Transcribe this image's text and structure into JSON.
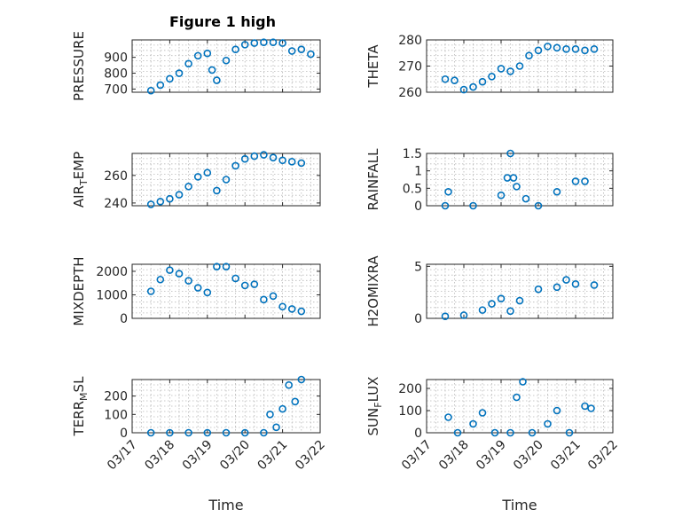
{
  "title": "Figure 1 high",
  "colors": {
    "marker": "#0072bd",
    "axis": "#262626"
  },
  "x_tick_labels": [
    "03/17",
    "03/18",
    "03/19",
    "03/20",
    "03/21",
    "03/22"
  ],
  "x_axis_label": "Time",
  "chart_data": [
    {
      "type": "scatter",
      "name": "pressure",
      "ylabel": "PRESSURE",
      "title": "Figure 1 high",
      "yticks": [
        700,
        800,
        900
      ],
      "ylim": [
        680,
        1010
      ],
      "grid": true,
      "x": [
        "03/17 12:00",
        "03/17 18:00",
        "03/18 00:00",
        "03/18 06:00",
        "03/18 12:00",
        "03/18 18:00",
        "03/19 00:00",
        "03/19 03:00",
        "03/19 06:00",
        "03/19 12:00",
        "03/19 18:00",
        "03/20 00:00",
        "03/20 06:00",
        "03/20 12:00",
        "03/20 18:00",
        "03/21 00:00",
        "03/21 06:00",
        "03/21 12:00",
        "03/21 18:00"
      ],
      "y": [
        690,
        725,
        765,
        800,
        860,
        910,
        925,
        820,
        755,
        880,
        950,
        980,
        990,
        995,
        995,
        990,
        940,
        950,
        920
      ]
    },
    {
      "type": "scatter",
      "name": "theta",
      "ylabel": "THETA",
      "yticks": [
        260,
        270,
        280
      ],
      "ylim": [
        260,
        280
      ],
      "grid": true,
      "x": [
        "03/17 12:00",
        "03/17 18:00",
        "03/18 00:00",
        "03/18 06:00",
        "03/18 12:00",
        "03/18 18:00",
        "03/19 00:00",
        "03/19 06:00",
        "03/19 12:00",
        "03/19 18:00",
        "03/20 00:00",
        "03/20 06:00",
        "03/20 12:00",
        "03/20 18:00",
        "03/21 00:00",
        "03/21 06:00",
        "03/21 12:00"
      ],
      "y": [
        265,
        264.5,
        261,
        262,
        264,
        266,
        269,
        268,
        270,
        274,
        276,
        277.5,
        277,
        276.5,
        276.5,
        276,
        276.5
      ]
    },
    {
      "type": "scatter",
      "name": "air_temp",
      "ylabel": "AIR_TEMP",
      "yticks": [
        240,
        260
      ],
      "ylim": [
        238,
        276
      ],
      "grid": true,
      "x": [
        "03/17 12:00",
        "03/17 18:00",
        "03/18 00:00",
        "03/18 06:00",
        "03/18 12:00",
        "03/18 18:00",
        "03/19 00:00",
        "03/19 06:00",
        "03/19 12:00",
        "03/19 18:00",
        "03/20 00:00",
        "03/20 06:00",
        "03/20 12:00",
        "03/20 18:00",
        "03/21 00:00",
        "03/21 06:00",
        "03/21 12:00"
      ],
      "y": [
        239,
        241,
        243,
        246,
        252,
        259,
        262,
        249,
        257,
        267,
        272,
        274,
        275,
        273,
        271,
        270,
        269
      ]
    },
    {
      "type": "scatter",
      "name": "rainfall",
      "ylabel": "RAINFALL",
      "yticks": [
        0,
        0.5,
        1,
        1.5
      ],
      "ylim": [
        0,
        1.5
      ],
      "grid": true,
      "x": [
        "03/17 12:00",
        "03/17 14:00",
        "03/18 06:00",
        "03/19 00:00",
        "03/19 04:00",
        "03/19 06:00",
        "03/19 08:00",
        "03/19 10:00",
        "03/19 16:00",
        "03/20 00:00",
        "03/20 12:00",
        "03/21 00:00",
        "03/21 06:00"
      ],
      "y": [
        0,
        0.4,
        0,
        0.3,
        0.8,
        1.5,
        0.8,
        0.55,
        0.2,
        0,
        0.4,
        0.7,
        0.7
      ]
    },
    {
      "type": "scatter",
      "name": "mixdepth",
      "ylabel": "MIXDEPTH",
      "yticks": [
        0,
        1000,
        2000
      ],
      "ylim": [
        0,
        2300
      ],
      "grid": true,
      "x": [
        "03/17 12:00",
        "03/17 18:00",
        "03/18 00:00",
        "03/18 06:00",
        "03/18 12:00",
        "03/18 18:00",
        "03/19 00:00",
        "03/19 06:00",
        "03/19 12:00",
        "03/19 18:00",
        "03/20 00:00",
        "03/20 06:00",
        "03/20 12:00",
        "03/20 18:00",
        "03/21 00:00",
        "03/21 06:00",
        "03/21 12:00"
      ],
      "y": [
        1150,
        1650,
        2050,
        1900,
        1600,
        1300,
        1100,
        2200,
        2200,
        1700,
        1400,
        1450,
        800,
        950,
        500,
        400,
        300
      ]
    },
    {
      "type": "scatter",
      "name": "h2omixra",
      "ylabel": "H2OMIXRA",
      "yticks": [
        0,
        5
      ],
      "ylim": [
        0,
        5.2
      ],
      "grid": true,
      "x": [
        "03/17 12:00",
        "03/18 00:00",
        "03/18 12:00",
        "03/18 18:00",
        "03/19 00:00",
        "03/19 06:00",
        "03/19 12:00",
        "03/20 00:00",
        "03/20 12:00",
        "03/20 18:00",
        "03/21 00:00",
        "03/21 12:00"
      ],
      "y": [
        0.2,
        0.3,
        0.8,
        1.4,
        1.9,
        0.7,
        1.7,
        2.8,
        3.0,
        3.7,
        3.3,
        3.2
      ]
    },
    {
      "type": "scatter",
      "name": "terr_msl",
      "ylabel": "TERR_MSL",
      "yticks": [
        0,
        100,
        200
      ],
      "ylim": [
        0,
        290
      ],
      "grid": true,
      "x": [
        "03/17 12:00",
        "03/18 00:00",
        "03/18 12:00",
        "03/19 00:00",
        "03/19 12:00",
        "03/20 00:00",
        "03/20 12:00",
        "03/20 16:00",
        "03/20 20:00",
        "03/21 00:00",
        "03/21 04:00",
        "03/21 08:00",
        "03/21 12:00"
      ],
      "y": [
        0,
        0,
        0,
        0,
        0,
        0,
        0,
        100,
        30,
        130,
        260,
        170,
        290
      ]
    },
    {
      "type": "scatter",
      "name": "sun_flux",
      "ylabel": "SUN_FLUX",
      "yticks": [
        0,
        100,
        200
      ],
      "ylim": [
        0,
        240
      ],
      "grid": true,
      "x": [
        "03/17 14:00",
        "03/17 20:00",
        "03/18 06:00",
        "03/18 12:00",
        "03/18 20:00",
        "03/19 06:00",
        "03/19 10:00",
        "03/19 14:00",
        "03/19 20:00",
        "03/20 06:00",
        "03/20 12:00",
        "03/20 20:00",
        "03/21 06:00",
        "03/21 10:00"
      ],
      "y": [
        70,
        0,
        40,
        90,
        0,
        0,
        160,
        230,
        0,
        40,
        100,
        0,
        120,
        110
      ]
    }
  ]
}
